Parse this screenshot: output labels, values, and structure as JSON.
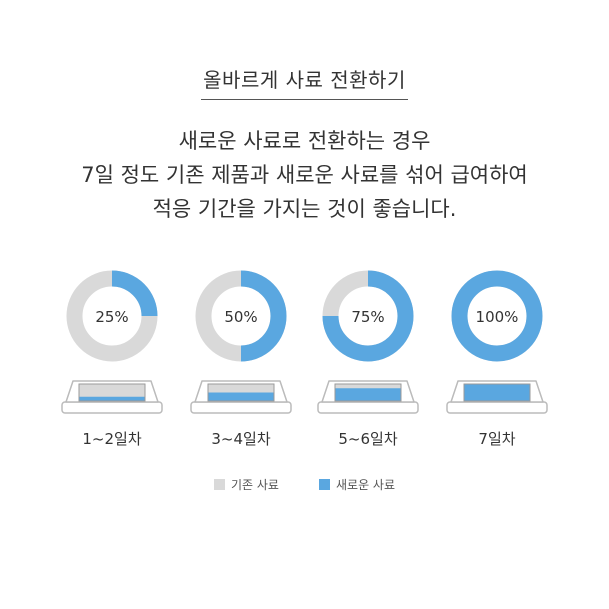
{
  "title": "올바르게 사료 전환하기",
  "description": {
    "line1": "새로운 사료로 전환하는 경우",
    "line2": "7일 정도 기존 제품과 새로운 사료를 섞어 급여하여",
    "line3": "적응 기간을 가지는 것이 좋습니다."
  },
  "legend": {
    "old_label": "기존 사료",
    "new_label": "새로운 사료"
  },
  "colors": {
    "old_feed": "#d9d9d9",
    "new_feed": "#5aa7e0",
    "bowl_outline": "#bbbbbb",
    "text": "#333333"
  },
  "chart_data": {
    "type": "pie",
    "title": "",
    "categories": [
      "1~2일차",
      "3~4일차",
      "5~6일차",
      "7일차"
    ],
    "series": [
      {
        "name": "새로운 사료",
        "values": [
          25,
          50,
          75,
          100
        ]
      },
      {
        "name": "기존 사료",
        "values": [
          75,
          50,
          25,
          0
        ]
      }
    ],
    "data_labels": [
      "25%",
      "50%",
      "75%",
      "100%"
    ],
    "unit": "%",
    "legend_position": "bottom"
  }
}
